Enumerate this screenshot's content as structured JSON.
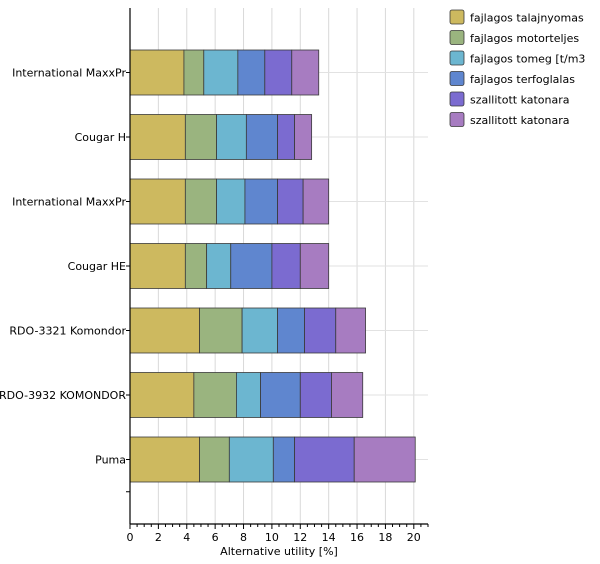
{
  "chart_data": {
    "type": "bar",
    "orientation": "horizontal",
    "stacked": true,
    "categories": [
      "International MaxxPr",
      "Cougar H",
      "International MaxxPr",
      "Cougar HE",
      "RDO-3321 Komondor",
      "RDO-3932 KOMONDOR",
      "Puma"
    ],
    "series": [
      {
        "name": "fajlagos talajnyomas",
        "color": "#cdb95f",
        "values": [
          3.8,
          3.9,
          3.9,
          3.9,
          4.9,
          4.5,
          4.9
        ]
      },
      {
        "name": "fajlagos motorteljes",
        "color": "#9ab47f",
        "values": [
          1.4,
          2.2,
          2.2,
          1.5,
          3.0,
          3.0,
          2.1
        ]
      },
      {
        "name": "fajlagos tomeg [t/m3",
        "color": "#6cb6d0",
        "values": [
          2.4,
          2.1,
          2.0,
          1.7,
          2.5,
          1.7,
          3.1
        ]
      },
      {
        "name": "fajlagos terfoglalas",
        "color": "#5f86cf",
        "values": [
          1.9,
          2.2,
          2.3,
          2.9,
          1.9,
          2.8,
          1.5
        ]
      },
      {
        "name": "szallitott katonara",
        "color": "#7b6bd0",
        "values": [
          1.9,
          1.2,
          1.8,
          2.0,
          2.2,
          2.2,
          4.2
        ]
      },
      {
        "name": "szallitott katonara",
        "color": "#a77cc1",
        "values": [
          1.9,
          1.2,
          1.8,
          2.0,
          2.1,
          2.2,
          4.3
        ]
      }
    ],
    "xlabel": "Alternative utility [%]",
    "ylabel": "",
    "xlim": [
      0,
      21
    ],
    "xticks": [
      0,
      2,
      4,
      6,
      8,
      10,
      12,
      14,
      16,
      18,
      20
    ],
    "grid": true,
    "legend_position": "top-right"
  }
}
